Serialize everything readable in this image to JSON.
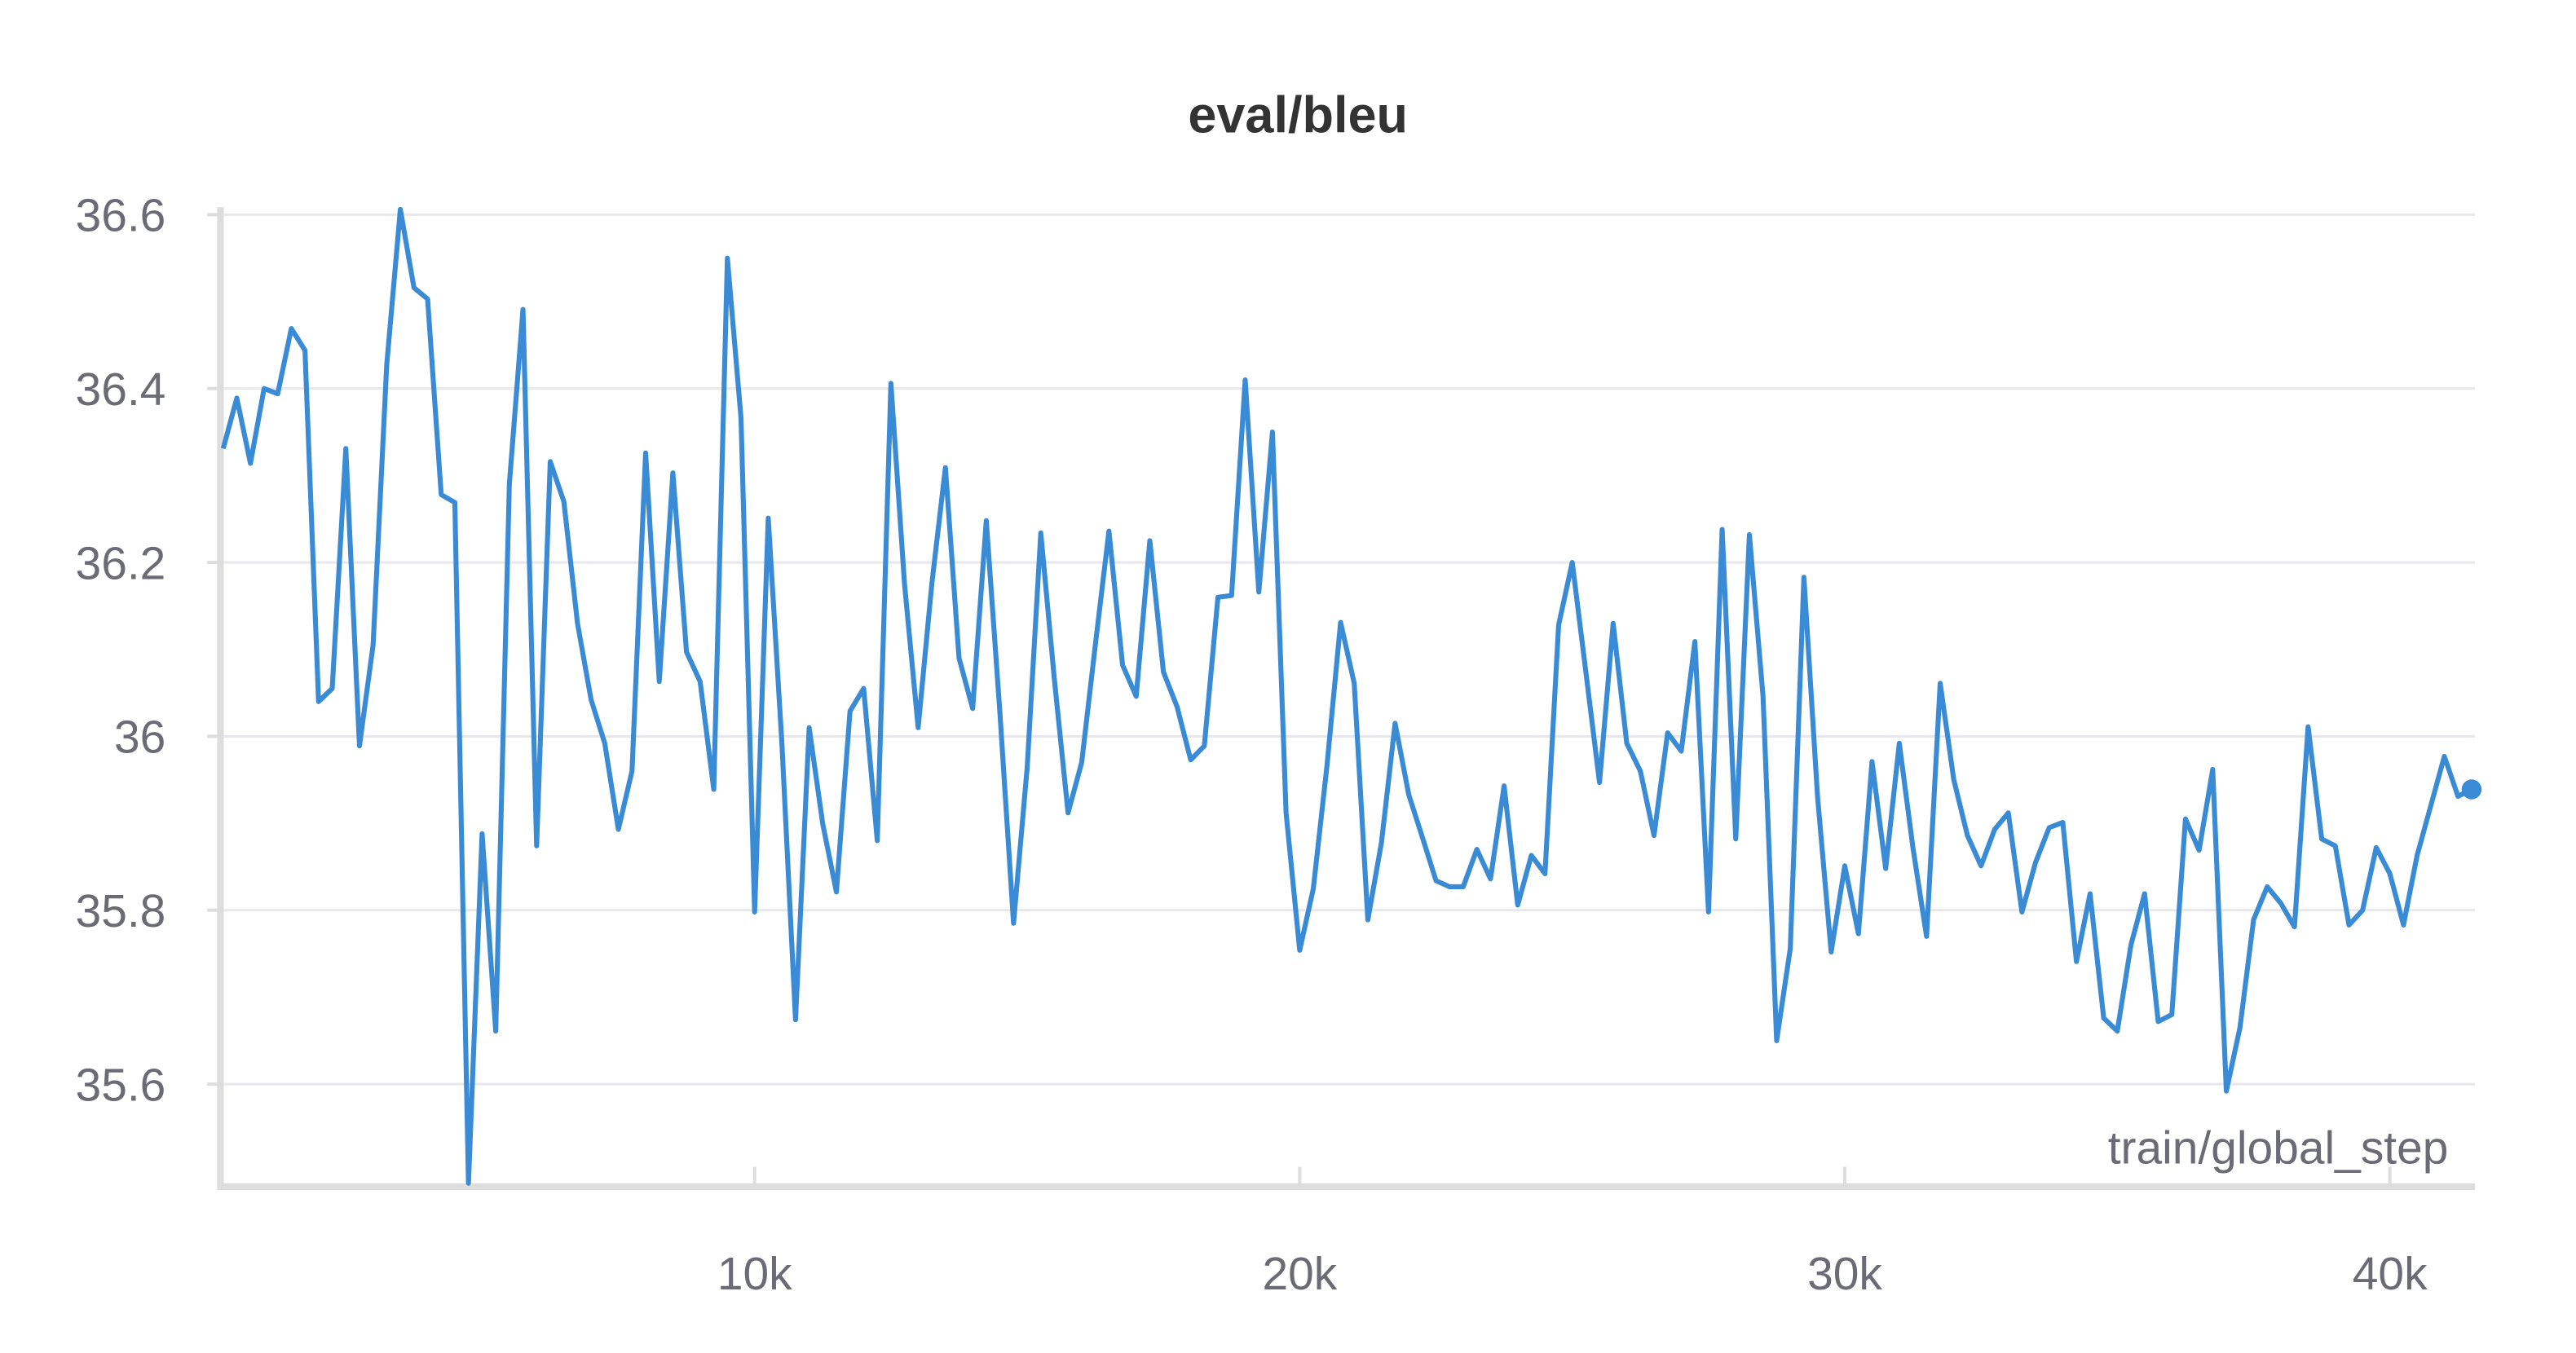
{
  "chart_data": {
    "type": "line",
    "title": "eval/bleu",
    "x_label": "train/global_step",
    "x": [
      250,
      500,
      750,
      1000,
      1250,
      1500,
      1750,
      2000,
      2250,
      2500,
      2750,
      3000,
      3250,
      3500,
      3750,
      4000,
      4250,
      4500,
      4750,
      5000,
      5250,
      5500,
      5750,
      6000,
      6250,
      6500,
      6750,
      7000,
      7250,
      7500,
      7750,
      8000,
      8250,
      8500,
      8750,
      9000,
      9250,
      9500,
      9750,
      10000,
      10250,
      10500,
      10750,
      11000,
      11250,
      11500,
      11750,
      12000,
      12250,
      12500,
      12750,
      13000,
      13250,
      13500,
      13750,
      14000,
      14250,
      14500,
      14750,
      15000,
      15250,
      15500,
      15750,
      16000,
      16250,
      16500,
      16750,
      17000,
      17250,
      17500,
      17750,
      18000,
      18250,
      18500,
      18750,
      19000,
      19250,
      19500,
      19750,
      20000,
      20250,
      20500,
      20750,
      21000,
      21250,
      21500,
      21750,
      22000,
      22250,
      22500,
      22750,
      23000,
      23250,
      23500,
      23750,
      24000,
      24250,
      24500,
      24750,
      25000,
      25250,
      25500,
      25750,
      26000,
      26250,
      26500,
      26750,
      27000,
      27250,
      27500,
      27750,
      28000,
      28250,
      28500,
      28750,
      29000,
      29250,
      29500,
      29750,
      30000,
      30250,
      30500,
      30750,
      31000,
      31250,
      31500,
      31750,
      32000,
      32250,
      32500,
      32750,
      33000,
      33250,
      33500,
      33750,
      34000,
      34250,
      34500,
      34750,
      35000,
      35250,
      35500,
      35750,
      36000,
      36250,
      36500,
      36750,
      37000,
      37250,
      37500,
      37750,
      38000,
      38250,
      38500,
      38750,
      39000,
      39250,
      39500,
      39750,
      40000,
      40250,
      40500,
      40750,
      41000,
      41250,
      41500
    ],
    "series": [
      {
        "name": "eval/bleu",
        "color": "#3a8bd6",
        "values": [
          36.331,
          36.389,
          36.314,
          36.4,
          36.394,
          36.469,
          36.444,
          36.04,
          36.055,
          36.331,
          35.989,
          36.105,
          36.427,
          36.606,
          36.516,
          36.503,
          36.278,
          36.269,
          35.486,
          35.888,
          35.661,
          36.29,
          36.491,
          35.874,
          36.316,
          36.27,
          36.13,
          36.042,
          35.992,
          35.893,
          35.96,
          36.326,
          36.063,
          36.303,
          36.097,
          36.063,
          35.939,
          36.55,
          36.366,
          35.798,
          36.251,
          35.992,
          35.674,
          36.01,
          35.899,
          35.821,
          36.029,
          36.055,
          35.88,
          36.406,
          36.175,
          36.01,
          36.175,
          36.309,
          36.09,
          36.032,
          36.248,
          36.027,
          35.785,
          35.964,
          36.234,
          36.065,
          35.912,
          35.97,
          36.105,
          36.236,
          36.082,
          36.046,
          36.225,
          36.074,
          36.034,
          35.973,
          35.989,
          36.16,
          36.162,
          36.41,
          36.166,
          36.35,
          35.912,
          35.754,
          35.825,
          35.966,
          36.131,
          36.061,
          35.789,
          35.878,
          36.015,
          35.933,
          35.884,
          35.834,
          35.827,
          35.827,
          35.87,
          35.836,
          35.943,
          35.806,
          35.863,
          35.842,
          36.128,
          36.2,
          36.074,
          35.947,
          36.13,
          35.992,
          35.96,
          35.886,
          36.004,
          35.983,
          36.109,
          35.798,
          36.238,
          35.882,
          36.232,
          36.046,
          35.65,
          35.756,
          36.183,
          35.931,
          35.752,
          35.851,
          35.773,
          35.971,
          35.848,
          35.992,
          35.872,
          35.77,
          36.061,
          35.95,
          35.886,
          35.851,
          35.893,
          35.912,
          35.798,
          35.855,
          35.895,
          35.901,
          35.741,
          35.819,
          35.676,
          35.661,
          35.76,
          35.819,
          35.672,
          35.68,
          35.905,
          35.869,
          35.962,
          35.592,
          35.665,
          35.789,
          35.827,
          35.808,
          35.781,
          36.011,
          35.882,
          35.874,
          35.783,
          35.8,
          35.872,
          35.842,
          35.783,
          35.863,
          35.92,
          35.977,
          35.931,
          35.939
        ]
      }
    ],
    "xlim": [
      200,
      41560
    ],
    "ylim": [
      35.482,
      36.62
    ],
    "xticks": [
      {
        "value": 10000,
        "label": "10k"
      },
      {
        "value": 20000,
        "label": "20k"
      },
      {
        "value": 30000,
        "label": "30k"
      },
      {
        "value": 40000,
        "label": "40k"
      }
    ],
    "yticks": [
      35.6,
      35.8,
      36,
      36.2,
      36.4,
      36.6
    ],
    "grid": true
  }
}
